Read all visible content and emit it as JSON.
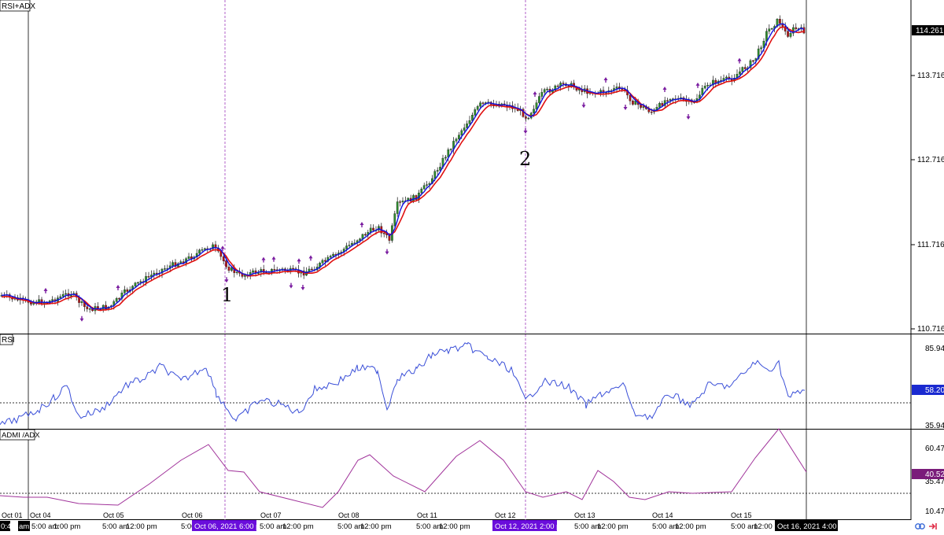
{
  "window": {
    "title": "RSI+ADX"
  },
  "colors": {
    "bull": "#2e8b2e",
    "bear": "#b01818",
    "wick": "#111111",
    "ma_fast": "#1010e0",
    "ma_slow": "#e01010",
    "arrow": "#7a1ca0",
    "rsi": "#3a4fd8",
    "adx": "#a0329a",
    "vline": "#b060c8",
    "last_bg": "#000000",
    "rsi_bg": "#1a2ad0",
    "adx_bg": "#7a1c7a",
    "crosshair_bg": "#6a0ddb"
  },
  "panels": {
    "rsi_title": "RSI",
    "adx_title": "ADMI /ADX"
  },
  "price_axis": {
    "ticks": [
      "114.261",
      "113.716",
      "112.716",
      "111.716",
      "110.716"
    ],
    "last_price": "114.261"
  },
  "rsi_axis": {
    "ticks": [
      "85.94",
      "35.94"
    ],
    "current": "58.20"
  },
  "adx_axis": {
    "ticks": [
      "60.47",
      "35.47",
      "10.47"
    ],
    "current": "40.52"
  },
  "date_row": {
    "labels": [
      "Oct 01",
      "Oct 04",
      "Oct 05",
      "Oct 06",
      "Oct 07",
      "Oct 08",
      "Oct 11",
      "Oct 12",
      "Oct 13",
      "Oct 14",
      "Oct 15"
    ]
  },
  "time_row": {
    "left_clip": "0:4",
    "items": [
      "am",
      "5:00 am",
      "1:00 pm",
      "5:00 am",
      "12:00 pm",
      "5:00 am",
      "5:00 am",
      "12:00 pm",
      "5:00 am",
      "12:00 pm",
      "5:00 am",
      "12:00 pm",
      "5:00 am",
      "12:00 pm",
      "5:00 am",
      "12:00 pm",
      "5:00 am",
      "12:00 pm",
      "5:00 am",
      "12:00 pm"
    ],
    "crosshair_1": "Oct 06, 2021 6:00 pm",
    "crosshair_2": "Oct 12, 2021 2:00 pm",
    "cursor": "Oct 16, 2021 4:00 am"
  },
  "annotations": {
    "mark_1": "1",
    "mark_2": "2"
  },
  "icons": {
    "sync": "link-icon",
    "scroll_end": "scroll-to-end-icon"
  },
  "chart_data": {
    "type": "candlestick",
    "title": "RSI+ADX",
    "price_range": [
      110.716,
      114.261
    ],
    "closes_approx": [
      {
        "x": "Oct 01",
        "close": 111.2
      },
      {
        "x": "Oct 04",
        "close": 111.15
      },
      {
        "x": "Oct 05",
        "close": 111.4
      },
      {
        "x": "Oct 06",
        "close": 111.65
      },
      {
        "x": "Oct 06 18:00",
        "close": 111.5
      },
      {
        "x": "Oct 07",
        "close": 111.45
      },
      {
        "x": "Oct 08",
        "close": 111.7
      },
      {
        "x": "Oct 11",
        "close": 113.3
      },
      {
        "x": "Oct 12",
        "close": 113.3
      },
      {
        "x": "Oct 13",
        "close": 113.55
      },
      {
        "x": "Oct 14",
        "close": 113.45
      },
      {
        "x": "Oct 15",
        "close": 113.9
      },
      {
        "x": "Oct 16",
        "close": 114.26
      }
    ],
    "series": [
      {
        "name": "RSI",
        "axis": [
          10,
          95
        ],
        "last": 58.2
      },
      {
        "name": "ADX",
        "axis": [
          10,
          75
        ],
        "last": 40.52
      }
    ],
    "markers": [
      {
        "label": "1",
        "x": "Oct 06, 2021 6:00 pm"
      },
      {
        "label": "2",
        "x": "Oct 12, 2021 2:00 pm"
      }
    ]
  }
}
